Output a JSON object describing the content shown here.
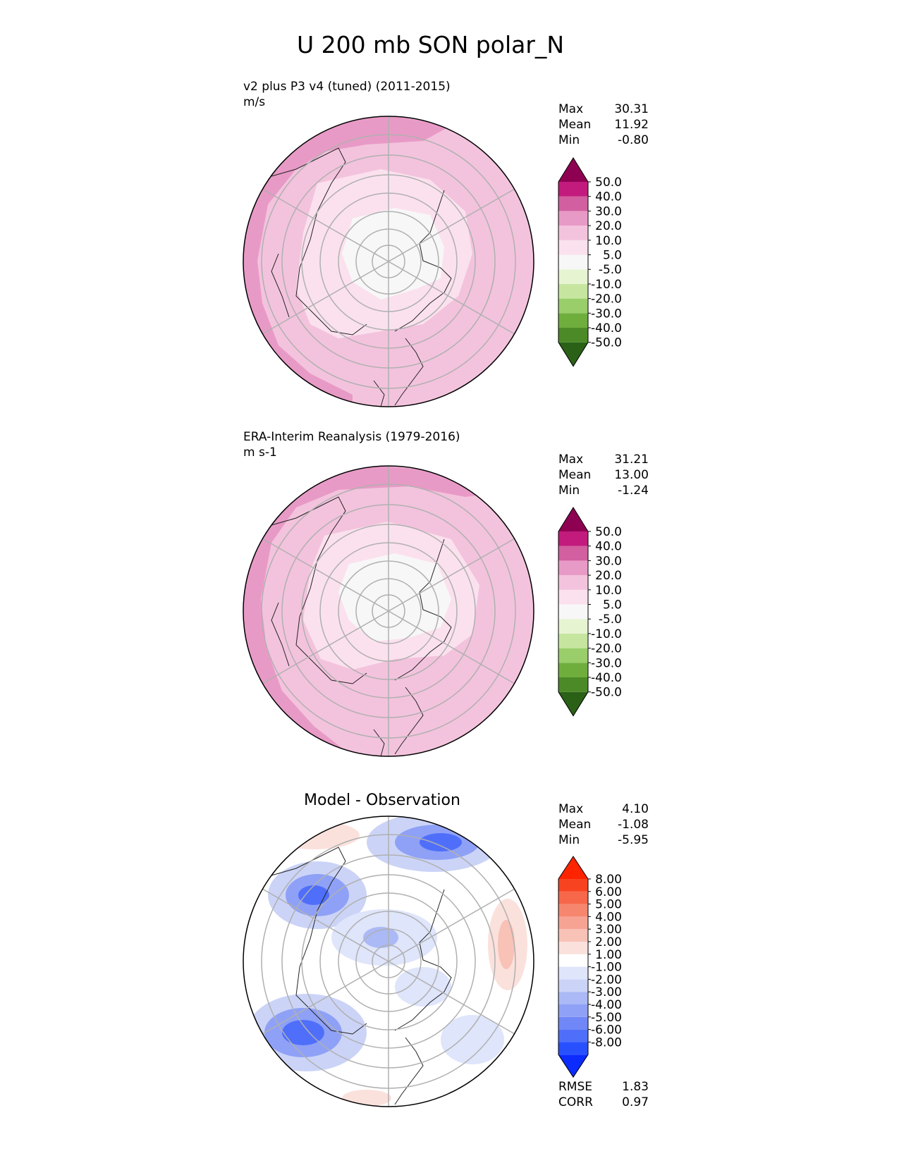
{
  "figure": {
    "title": "U 200 mb SON polar_N"
  },
  "colors": {
    "seq": [
      "#2a6117",
      "#4b8a27",
      "#6fae3d",
      "#99ce6a",
      "#c6e6a0",
      "#e6f4d2",
      "#f7f7f7",
      "#fbe1ee",
      "#f3c3dd",
      "#e89ac6",
      "#d25f9f",
      "#c21b7d",
      "#8e0152"
    ],
    "diff": [
      "#0b2bff",
      "#2850ff",
      "#4f6ffa",
      "#7087f7",
      "#8fa1f6",
      "#abb9f6",
      "#cbd4f7",
      "#dfe5fa",
      "#ffffff",
      "#fbe1dc",
      "#f8c2b7",
      "#f7a394",
      "#f7866f",
      "#f76749",
      "#f7431f",
      "#ff2400"
    ]
  },
  "panels": [
    {
      "name": "test",
      "title": "v2 plus P3 v4 (tuned) (2011-2015)",
      "units": "m/s",
      "stats": [
        {
          "label": "Max",
          "value": "30.31"
        },
        {
          "label": "Mean",
          "value": "11.92"
        },
        {
          "label": "Min",
          "value": "-0.80"
        }
      ]
    },
    {
      "name": "reference",
      "title": "ERA-Interim Reanalysis (1979-2016)",
      "units": "m s-1",
      "stats": [
        {
          "label": "Max",
          "value": "31.21"
        },
        {
          "label": "Mean",
          "value": "13.00"
        },
        {
          "label": "Min",
          "value": "-1.24"
        }
      ]
    },
    {
      "name": "difference",
      "title": "Model - Observation",
      "stats": [
        {
          "label": "Max",
          "value": "4.10"
        },
        {
          "label": "Mean",
          "value": "-1.08"
        },
        {
          "label": "Min",
          "value": "-5.95"
        }
      ],
      "metrics": [
        {
          "label": "RMSE",
          "value": "1.83"
        },
        {
          "label": "CORR",
          "value": "0.97"
        }
      ]
    }
  ],
  "chart_data": [
    {
      "type": "heatmap",
      "projection": "north polar stereographic",
      "variable": "U 200 mb SON",
      "title": "v2 plus P3 v4 (tuned) (2011-2015)",
      "units": "m/s",
      "colorbar_levels": [
        "50.0",
        "40.0",
        "30.0",
        "20.0",
        "10.0",
        "5.0",
        "-5.0",
        "-10.0",
        "-20.0",
        "-30.0",
        "-40.0",
        "-50.0"
      ],
      "max": 30.31,
      "mean": 11.92,
      "min": -0.8
    },
    {
      "type": "heatmap",
      "projection": "north polar stereographic",
      "variable": "U 200 mb SON",
      "title": "ERA-Interim Reanalysis (1979-2016)",
      "units": "m s-1",
      "colorbar_levels": [
        "50.0",
        "40.0",
        "30.0",
        "20.0",
        "10.0",
        "5.0",
        "-5.0",
        "-10.0",
        "-20.0",
        "-30.0",
        "-40.0",
        "-50.0"
      ],
      "max": 31.21,
      "mean": 13.0,
      "min": -1.24
    },
    {
      "type": "heatmap",
      "projection": "north polar stereographic",
      "title": "Model - Observation",
      "colorbar_levels": [
        "8.00",
        "6.00",
        "5.00",
        "4.00",
        "3.00",
        "2.00",
        "1.00",
        "-1.00",
        "-2.00",
        "-3.00",
        "-4.00",
        "-5.00",
        "-6.00",
        "-8.00"
      ],
      "max": 4.1,
      "mean": -1.08,
      "min": -5.95,
      "rmse": 1.83,
      "corr": 0.97
    }
  ]
}
